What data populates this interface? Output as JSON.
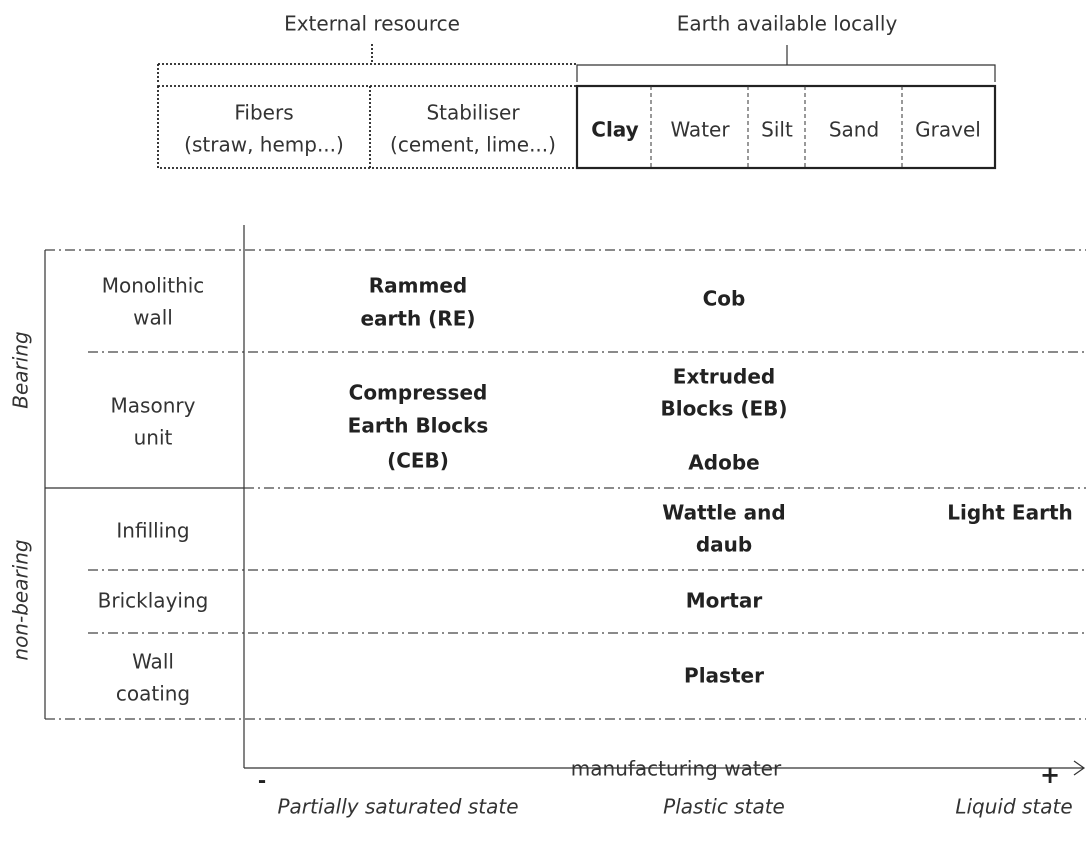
{
  "header": {
    "external_label": "External resource",
    "local_label": "Earth available locally",
    "external_components": [
      {
        "lines": [
          "Fibers",
          "(straw, hemp...)"
        ]
      },
      {
        "lines": [
          "Stabiliser",
          "(cement, lime...)"
        ]
      }
    ],
    "local_components": [
      "Clay",
      "Water",
      "Silt",
      "Sand",
      "Gravel"
    ]
  },
  "groups": [
    "Bearing",
    "non-bearing"
  ],
  "rows": [
    {
      "lines": [
        "Monolithic",
        "wall"
      ]
    },
    {
      "lines": [
        "Masonry",
        "unit"
      ]
    },
    {
      "lines": [
        "Infilling"
      ]
    },
    {
      "lines": [
        "Bricklaying"
      ]
    },
    {
      "lines": [
        "Wall",
        "coating"
      ]
    }
  ],
  "techniques": [
    {
      "lines": [
        "Rammed",
        "earth (RE)"
      ]
    },
    {
      "lines": [
        "Cob"
      ]
    },
    {
      "lines": [
        "Compressed",
        "Earth Blocks",
        "(CEB)"
      ]
    },
    {
      "lines": [
        "Extruded",
        "Blocks (EB)"
      ]
    },
    {
      "lines": [
        "Adobe"
      ]
    },
    {
      "lines": [
        "Wattle and",
        "daub"
      ]
    },
    {
      "lines": [
        "Light Earth"
      ]
    },
    {
      "lines": [
        "Mortar"
      ]
    },
    {
      "lines": [
        "Plaster"
      ]
    }
  ],
  "axis": {
    "minus": "-",
    "label": "manufacturing water",
    "plus": "+",
    "states": [
      "Partially saturated state",
      "Plastic state",
      "Liquid state"
    ]
  }
}
